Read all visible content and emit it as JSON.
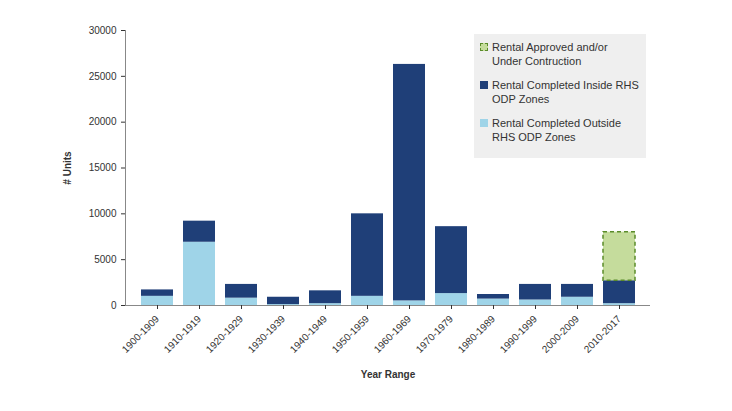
{
  "chart_data": {
    "type": "bar",
    "stacked": true,
    "x_label": "Year Range",
    "y_label": "# Units",
    "categories": [
      "1900-1909",
      "1910-1919",
      "1920-1929",
      "1930-1939",
      "1940-1949",
      "1950-1959",
      "1960-1969",
      "1970-1979",
      "1980-1989",
      "1990-1999",
      "2000-2009",
      "2010-2017"
    ],
    "series": [
      {
        "name": "Rental Completed Outside RHS ODP Zones",
        "color": "#9fd4e8",
        "values": [
          1000,
          6900,
          800,
          100,
          200,
          1000,
          500,
          1300,
          700,
          600,
          900,
          200
        ]
      },
      {
        "name": "Rental Completed Inside RHS ODP Zones",
        "color": "#1f3f78",
        "values": [
          700,
          2300,
          1500,
          800,
          1400,
          9000,
          25800,
          7300,
          500,
          1700,
          1400,
          2500
        ]
      },
      {
        "name": "Rental Approved and/or Under Contruction",
        "color": "#c5dc9c",
        "line_style": "dashed",
        "values": [
          0,
          0,
          0,
          0,
          0,
          0,
          0,
          0,
          0,
          0,
          0,
          5300
        ]
      }
    ],
    "ylim": [
      0,
      30000
    ],
    "yticks": [
      0,
      5000,
      10000,
      15000,
      20000,
      25000,
      30000
    ],
    "grid": false,
    "legend": "upper right"
  }
}
